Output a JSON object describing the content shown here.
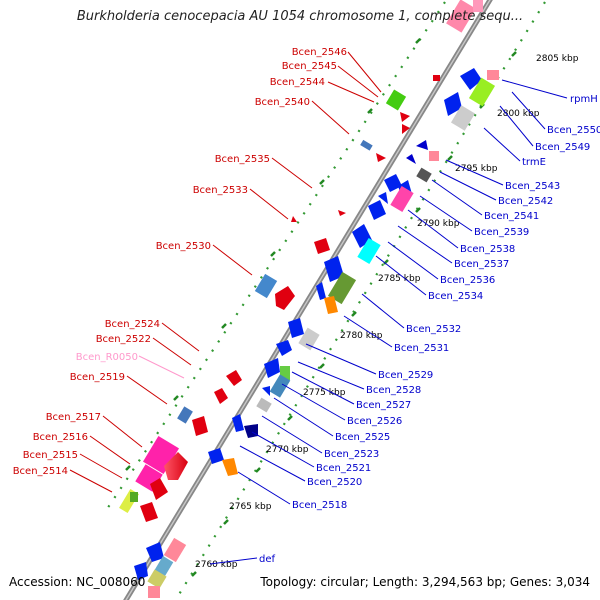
{
  "title": "Burkholderia cenocepacia AU 1054 chromosome 1, complete sequ...",
  "footer": {
    "accession": "Accession: NC_008060",
    "topology": "Topology: circular; Length: 3,294,563 bp; Genes: 3,034"
  },
  "colors": {
    "forward_label": "#cc0000",
    "reverse_label": "#0000cc",
    "rna_label": "#ff99cc",
    "backbone": "#888888",
    "dots": "#339933"
  },
  "kbp_ticks": [
    {
      "label": "2805 kbp"
    },
    {
      "label": "2800 kbp"
    },
    {
      "label": "2795 kbp"
    },
    {
      "label": "2790 kbp"
    },
    {
      "label": "2785 kbp"
    },
    {
      "label": "2780 kbp"
    },
    {
      "label": "2775 kbp"
    },
    {
      "label": "2770 kbp"
    },
    {
      "label": "2765 kbp"
    },
    {
      "label": "2760 kbp"
    }
  ],
  "left_labels": [
    {
      "text": "Bcen_2546",
      "kind": "forward"
    },
    {
      "text": "Bcen_2545",
      "kind": "forward"
    },
    {
      "text": "Bcen_2544",
      "kind": "forward"
    },
    {
      "text": "Bcen_2540",
      "kind": "forward"
    },
    {
      "text": "Bcen_2535",
      "kind": "forward"
    },
    {
      "text": "Bcen_2533",
      "kind": "forward"
    },
    {
      "text": "Bcen_2530",
      "kind": "forward"
    },
    {
      "text": "Bcen_2524",
      "kind": "forward"
    },
    {
      "text": "Bcen_2522",
      "kind": "forward"
    },
    {
      "text": "Bcen_R0050",
      "kind": "rna"
    },
    {
      "text": "Bcen_2519",
      "kind": "forward"
    },
    {
      "text": "Bcen_2517",
      "kind": "forward"
    },
    {
      "text": "Bcen_2516",
      "kind": "forward"
    },
    {
      "text": "Bcen_2515",
      "kind": "forward"
    },
    {
      "text": "Bcen_2514",
      "kind": "forward"
    }
  ],
  "right_labels": [
    {
      "text": "rpmH"
    },
    {
      "text": "Bcen_2550"
    },
    {
      "text": "Bcen_2549"
    },
    {
      "text": "trmE"
    },
    {
      "text": "Bcen_2543"
    },
    {
      "text": "Bcen_2542"
    },
    {
      "text": "Bcen_2541"
    },
    {
      "text": "Bcen_2539"
    },
    {
      "text": "Bcen_2538"
    },
    {
      "text": "Bcen_2537"
    },
    {
      "text": "Bcen_2536"
    },
    {
      "text": "Bcen_2534"
    },
    {
      "text": "Bcen_2532"
    },
    {
      "text": "Bcen_2531"
    },
    {
      "text": "Bcen_2529"
    },
    {
      "text": "Bcen_2528"
    },
    {
      "text": "Bcen_2527"
    },
    {
      "text": "Bcen_2526"
    },
    {
      "text": "Bcen_2525"
    },
    {
      "text": "Bcen_2523"
    },
    {
      "text": "Bcen_2521"
    },
    {
      "text": "Bcen_2520"
    },
    {
      "text": "Bcen_2518"
    },
    {
      "text": "def"
    }
  ]
}
